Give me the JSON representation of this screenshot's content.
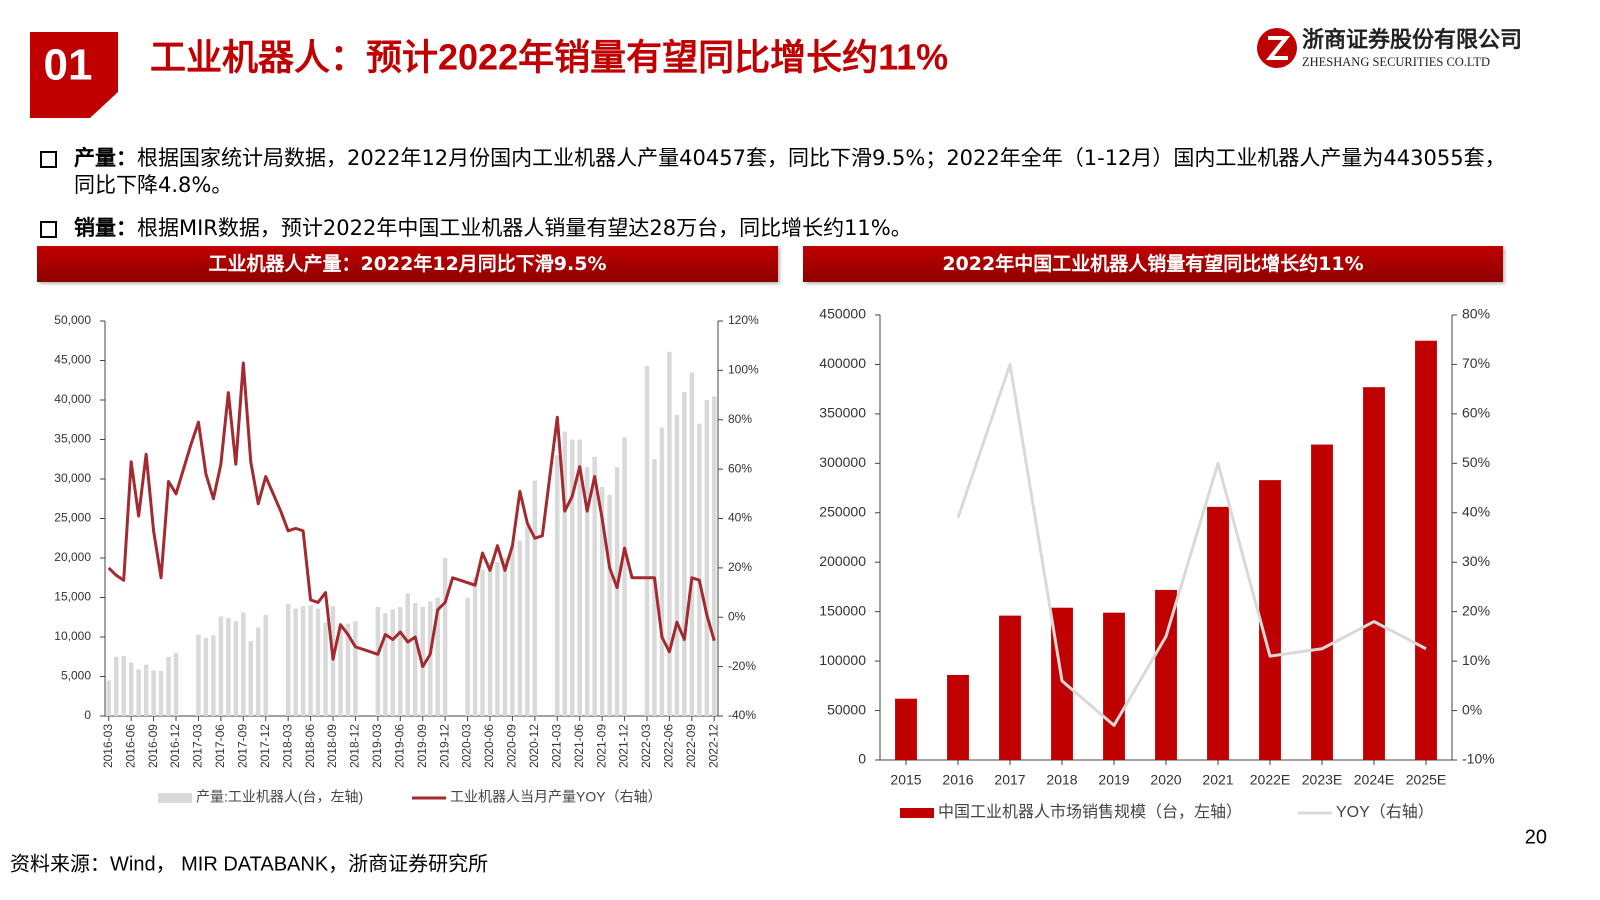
{
  "header": {
    "number": "01",
    "title": "工业机器人：预计2022年销量有望同比增长约11%",
    "company_cn": "浙商证券股份有限公司",
    "company_en": "ZHESHANG SECURITIES CO.LTD"
  },
  "bullets": [
    {
      "label": "产量：",
      "text": "根据国家统计局数据，2022年12月份国内工业机器人产量40457套，同比下滑9.5%；2022年全年（1-12月）国内工业机器人产量为443055套，同比下降4.8%。"
    },
    {
      "label": "销量：",
      "text": "根据MIR数据，预计2022年中国工业机器人销量有望达28万台，同比增长约11%。"
    }
  ],
  "chart_data": [
    {
      "type": "combo",
      "title": "工业机器人产量：2022年12月同比下滑9.5%",
      "categories": [
        "2016-03",
        null,
        null,
        "2016-06",
        null,
        null,
        "2016-09",
        null,
        null,
        "2016-12",
        null,
        null,
        "2017-03",
        null,
        null,
        "2017-06",
        null,
        null,
        "2017-09",
        null,
        null,
        "2017-12",
        null,
        null,
        "2018-03",
        null,
        null,
        "2018-06",
        null,
        null,
        "2018-09",
        null,
        null,
        "2018-12",
        null,
        null,
        "2019-03",
        null,
        null,
        "2019-06",
        null,
        null,
        "2019-09",
        null,
        null,
        "2019-12",
        null,
        null,
        "2020-03",
        null,
        null,
        "2020-06",
        null,
        null,
        "2020-09",
        null,
        null,
        "2020-12",
        null,
        null,
        "2021-03",
        null,
        null,
        "2021-06",
        null,
        null,
        "2021-09",
        null,
        null,
        "2021-12",
        null,
        null,
        "2022-03",
        null,
        null,
        "2022-06",
        null,
        null,
        "2022-09",
        null,
        null,
        "2022-12"
      ],
      "series": [
        {
          "name": "产量:工业机器人(台，左轴)",
          "type": "bar",
          "color": "#d9d9d9",
          "values": [
            4500,
            7500,
            7600,
            6800,
            5900,
            6500,
            5800,
            5700,
            7500,
            8000,
            null,
            null,
            10300,
            9900,
            10200,
            12600,
            12400,
            12000,
            13100,
            9500,
            11200,
            12800,
            null,
            null,
            14200,
            13600,
            13900,
            14000,
            13600,
            11800,
            13900,
            11400,
            11700,
            12000,
            null,
            null,
            13800,
            13000,
            13500,
            13800,
            15500,
            14300,
            13800,
            14500,
            15000,
            20000,
            null,
            null,
            15000,
            17600,
            18500,
            19500,
            19500,
            20000,
            21500,
            22200,
            24000,
            29800,
            null,
            null,
            33000,
            36000,
            35000,
            35000,
            31500,
            32800,
            29000,
            28000,
            31500,
            35300,
            null,
            null,
            44300,
            32500,
            36500,
            46100,
            38100,
            41000,
            43500,
            37000,
            40000,
            40457
          ]
        },
        {
          "name": "工业机器人当月产量YOY（右轴）",
          "type": "line",
          "axis": "y2",
          "color": "#a32a2e",
          "values": [
            20,
            17,
            15,
            63,
            41,
            66,
            35,
            16,
            55,
            50,
            60,
            70,
            79,
            58,
            48,
            62,
            91,
            62,
            103,
            63,
            46,
            57,
            50,
            43,
            35,
            36,
            35,
            7,
            6,
            10,
            -17,
            -3,
            -7,
            -12,
            -13,
            -14,
            -15,
            -7,
            -9,
            -6,
            -10,
            -8,
            -20,
            -15,
            3,
            6,
            16,
            15,
            14,
            13,
            26,
            19,
            29,
            19,
            29,
            51,
            38,
            32,
            33,
            57,
            81,
            43,
            49,
            61,
            43,
            57,
            40,
            20,
            12,
            28,
            16,
            16,
            16,
            16,
            -8,
            -14,
            -2,
            -9,
            16,
            15,
            1,
            -9.5
          ]
        }
      ],
      "ylim": [
        0,
        50000
      ],
      "yticks": [
        0,
        {
          "value": 5000,
          "label": "5,000"
        },
        {
          "value": 10000,
          "label": "10,000"
        },
        {
          "value": 15000,
          "label": "15,000"
        },
        {
          "value": 20000,
          "label": "20,000"
        },
        {
          "value": 25000,
          "label": "25,000"
        },
        {
          "value": 30000,
          "label": "30,000"
        },
        {
          "value": 35000,
          "label": "35,000"
        },
        {
          "value": 40000,
          "label": "40,000"
        },
        {
          "value": 45000,
          "label": "45,000"
        },
        {
          "value": 50000,
          "label": "50,000"
        }
      ],
      "y2lim": [
        -40,
        120
      ],
      "y2ticks": [
        {
          "value": -40,
          "label": "-40%"
        },
        {
          "value": -20,
          "label": "-20%"
        },
        {
          "value": 0,
          "label": "0%"
        },
        {
          "value": 20,
          "label": "20%"
        },
        {
          "value": 40,
          "label": "40%"
        },
        {
          "value": 60,
          "label": "60%"
        },
        {
          "value": 80,
          "label": "80%"
        },
        {
          "value": 100,
          "label": "100%"
        },
        {
          "value": 120,
          "label": "120%"
        }
      ]
    },
    {
      "type": "combo",
      "title": "2022年中国工业机器人销量有望同比增长约11%",
      "categories": [
        "2015",
        "2016",
        "2017",
        "2018",
        "2019",
        "2020",
        "2021",
        "2022E",
        "2023E",
        "2024E",
        "2025E"
      ],
      "series": [
        {
          "name": "中国工业机器人市场销售规模（台，左轴）",
          "type": "bar",
          "color": "#c00000",
          "values": [
            62000,
            86000,
            146000,
            154000,
            149000,
            172000,
            256000,
            283000,
            319000,
            377000,
            424000
          ]
        },
        {
          "name": "YOY（右轴）",
          "type": "line",
          "axis": "y2",
          "color": "#d9d9d9",
          "values": [
            null,
            39,
            70,
            6,
            -3,
            15,
            50,
            11,
            12.5,
            18,
            12.5
          ]
        }
      ],
      "ylim": [
        0,
        450000
      ],
      "yticks": [
        0,
        50000,
        100000,
        150000,
        200000,
        250000,
        300000,
        350000,
        400000,
        450000
      ],
      "y2lim": [
        -10,
        80
      ],
      "y2ticks": [
        {
          "value": -10,
          "label": "-10%"
        },
        {
          "value": 0,
          "label": "0%"
        },
        {
          "value": 10,
          "label": "10%"
        },
        {
          "value": 20,
          "label": "20%"
        },
        {
          "value": 30,
          "label": "30%"
        },
        {
          "value": 40,
          "label": "40%"
        },
        {
          "value": 50,
          "label": "50%"
        },
        {
          "value": 60,
          "label": "60%"
        },
        {
          "value": 70,
          "label": "70%"
        },
        {
          "value": 80,
          "label": "80%"
        }
      ]
    }
  ],
  "footer": {
    "source": "资料来源：Wind， MIR DATABANK，浙商证券研究所",
    "page": "20"
  }
}
